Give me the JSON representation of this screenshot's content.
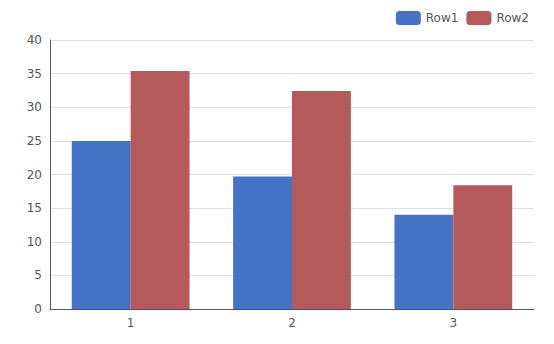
{
  "chart_data": {
    "type": "bar",
    "categories": [
      1,
      2,
      3
    ],
    "series": [
      {
        "name": "Row1",
        "color": "#4472C4",
        "values": [
          25,
          19.7,
          14
        ]
      },
      {
        "name": "Row2",
        "color": "#B55A5A",
        "values": [
          35.4,
          32.4,
          18.4
        ]
      }
    ],
    "ylim": [
      0,
      40
    ],
    "yticks": [
      0,
      5,
      10,
      15,
      20,
      25,
      30,
      35,
      40
    ],
    "grid": true,
    "legend": "upper right"
  }
}
